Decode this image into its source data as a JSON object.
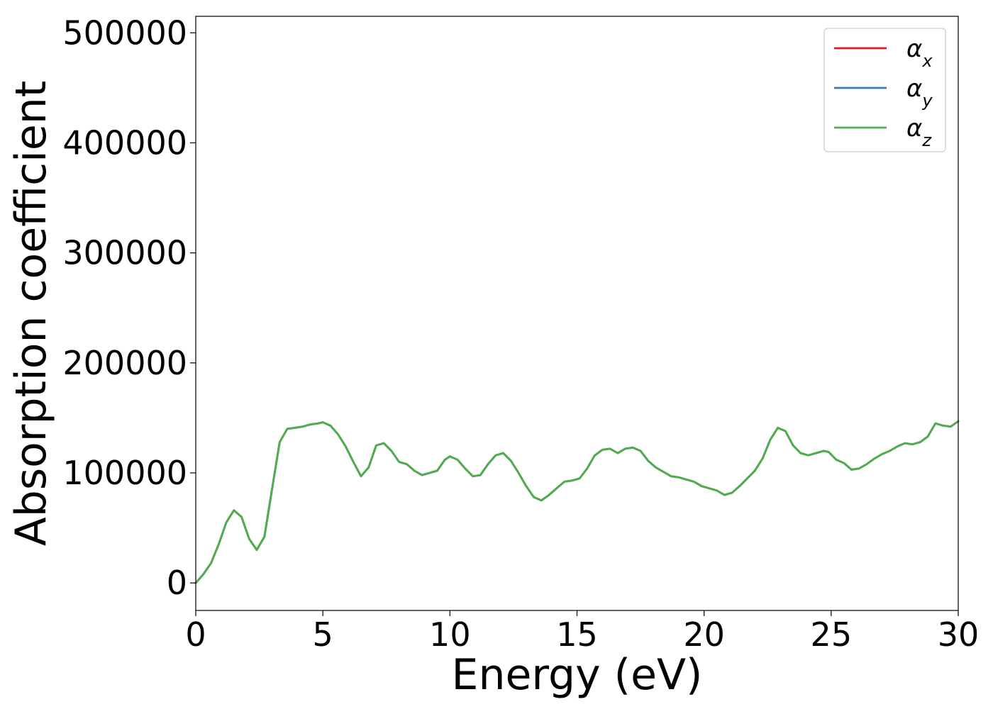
{
  "chart_data": {
    "type": "line",
    "title": "",
    "xlabel": "Energy (eV)",
    "ylabel": "Absorption coefficient",
    "xlim": [
      0,
      30
    ],
    "ylim": [
      -25000,
      515000
    ],
    "xticks": [
      0,
      5,
      10,
      15,
      20,
      25,
      30
    ],
    "yticks": [
      0,
      100000,
      200000,
      300000,
      400000,
      500000
    ],
    "xtick_labels": [
      "0",
      "5",
      "10",
      "15",
      "20",
      "25",
      "30"
    ],
    "ytick_labels": [
      "0",
      "100000",
      "200000",
      "300000",
      "400000",
      "500000"
    ],
    "grid": false,
    "legend": "top-right",
    "legend_labels": [
      {
        "base": "α",
        "sub": "x"
      },
      {
        "base": "α",
        "sub": "y"
      },
      {
        "base": "α",
        "sub": "z"
      }
    ],
    "colors": [
      "#e41a1c",
      "#377eb8",
      "#4daf4a"
    ],
    "x": [
      0,
      0.3,
      0.6,
      0.9,
      1.2,
      1.5,
      1.8,
      2.1,
      2.4,
      2.7,
      3.0,
      3.3,
      3.6,
      3.9,
      4.2,
      4.5,
      4.8,
      5.0,
      5.3,
      5.6,
      5.9,
      6.2,
      6.5,
      6.8,
      7.1,
      7.4,
      7.7,
      8.0,
      8.3,
      8.6,
      8.9,
      9.2,
      9.5,
      9.8,
      10.0,
      10.3,
      10.6,
      10.9,
      11.2,
      11.5,
      11.8,
      12.1,
      12.4,
      12.7,
      13.0,
      13.3,
      13.6,
      13.9,
      14.2,
      14.5,
      14.8,
      15.1,
      15.4,
      15.7,
      16.0,
      16.3,
      16.6,
      16.9,
      17.2,
      17.5,
      17.8,
      18.1,
      18.4,
      18.7,
      19.0,
      19.3,
      19.6,
      19.9,
      20.2,
      20.5,
      20.8,
      21.1,
      21.4,
      21.7,
      22.0,
      22.3,
      22.6,
      22.9,
      23.2,
      23.5,
      23.8,
      24.1,
      24.4,
      24.7,
      24.9,
      25.2,
      25.5,
      25.8,
      26.1,
      26.4,
      26.7,
      27.0,
      27.3,
      27.6,
      27.9,
      28.2,
      28.5,
      28.8,
      29.1,
      29.4,
      29.7,
      30.0
    ],
    "series": [
      {
        "name": "αx",
        "values": [
          0,
          8000,
          18000,
          35000,
          55000,
          66000,
          60000,
          40000,
          30000,
          42000,
          85000,
          128000,
          140000,
          141000,
          142000,
          144000,
          145000,
          146000,
          143000,
          135000,
          124000,
          110000,
          97000,
          105000,
          125000,
          127000,
          120000,
          110000,
          108000,
          102000,
          98000,
          100000,
          102000,
          112000,
          115000,
          112000,
          104000,
          97000,
          98000,
          108000,
          116000,
          118000,
          111000,
          100000,
          88000,
          78000,
          75000,
          80000,
          86000,
          92000,
          93000,
          95000,
          104000,
          116000,
          121000,
          122000,
          118000,
          122000,
          123000,
          120000,
          111000,
          105000,
          101000,
          97000,
          96000,
          94000,
          92000,
          88000,
          86000,
          84000,
          80000,
          82000,
          88000,
          95000,
          102000,
          113000,
          130000,
          141000,
          138000,
          125000,
          118000,
          116000,
          118000,
          120000,
          119000,
          112000,
          109000,
          103000,
          104000,
          108000,
          113000,
          117000,
          120000,
          124000,
          127000,
          126000,
          128000,
          133000,
          145000,
          143000,
          142000,
          147000
        ]
      },
      {
        "name": "αy",
        "values": [
          0,
          8000,
          18000,
          35000,
          55000,
          66000,
          60000,
          40000,
          30000,
          42000,
          85000,
          128000,
          140000,
          141000,
          142000,
          144000,
          145000,
          146000,
          143000,
          135000,
          124000,
          110000,
          97000,
          105000,
          125000,
          127000,
          120000,
          110000,
          108000,
          102000,
          98000,
          100000,
          102000,
          112000,
          115000,
          112000,
          104000,
          97000,
          98000,
          108000,
          116000,
          118000,
          111000,
          100000,
          88000,
          78000,
          75000,
          80000,
          86000,
          92000,
          93000,
          95000,
          104000,
          116000,
          121000,
          122000,
          118000,
          122000,
          123000,
          120000,
          111000,
          105000,
          101000,
          97000,
          96000,
          94000,
          92000,
          88000,
          86000,
          84000,
          80000,
          82000,
          88000,
          95000,
          102000,
          113000,
          130000,
          141000,
          138000,
          125000,
          118000,
          116000,
          118000,
          120000,
          119000,
          112000,
          109000,
          103000,
          104000,
          108000,
          113000,
          117000,
          120000,
          124000,
          127000,
          126000,
          128000,
          133000,
          145000,
          143000,
          142000,
          147000
        ]
      },
      {
        "name": "αz",
        "values": [
          0,
          8000,
          18000,
          35000,
          55000,
          66000,
          60000,
          40000,
          30000,
          42000,
          85000,
          128000,
          140000,
          141000,
          142000,
          144000,
          145000,
          146000,
          143000,
          135000,
          124000,
          110000,
          97000,
          105000,
          125000,
          127000,
          120000,
          110000,
          108000,
          102000,
          98000,
          100000,
          102000,
          112000,
          115000,
          112000,
          104000,
          97000,
          98000,
          108000,
          116000,
          118000,
          111000,
          100000,
          88000,
          78000,
          75000,
          80000,
          86000,
          92000,
          93000,
          95000,
          104000,
          116000,
          121000,
          122000,
          118000,
          122000,
          123000,
          120000,
          111000,
          105000,
          101000,
          97000,
          96000,
          94000,
          92000,
          88000,
          86000,
          84000,
          80000,
          82000,
          88000,
          95000,
          102000,
          113000,
          130000,
          141000,
          138000,
          125000,
          118000,
          116000,
          118000,
          120000,
          119000,
          112000,
          109000,
          103000,
          104000,
          108000,
          113000,
          117000,
          120000,
          124000,
          127000,
          126000,
          128000,
          133000,
          145000,
          143000,
          142000,
          147000
        ]
      }
    ]
  }
}
